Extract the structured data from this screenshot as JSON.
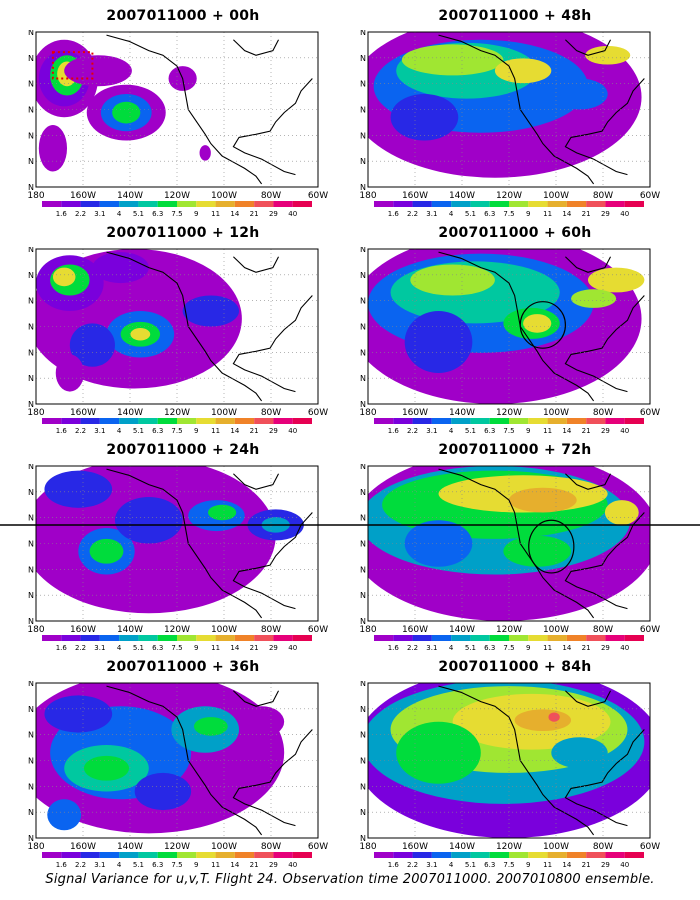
{
  "panels": [
    {
      "id": "p00",
      "title": "2007011000 + 00h"
    },
    {
      "id": "p12",
      "title": "2007011000 + 12h"
    },
    {
      "id": "p24",
      "title": "2007011000 + 24h"
    },
    {
      "id": "p36",
      "title": "2007011000 + 36h"
    },
    {
      "id": "p48",
      "title": "2007011000 + 48h"
    },
    {
      "id": "p60",
      "title": "2007011000 + 60h"
    },
    {
      "id": "p72",
      "title": "2007011000 + 72h"
    },
    {
      "id": "p84",
      "title": "2007011000 + 84h"
    }
  ],
  "axes": {
    "lat_labels": [
      "70N",
      "60N",
      "50N",
      "40N",
      "30N",
      "20N",
      "10N"
    ],
    "lon_labels": [
      "180",
      "160W",
      "140W",
      "120W",
      "100W",
      "80W",
      "60W"
    ]
  },
  "colorbar": {
    "labels": [
      "1.6",
      "2.2",
      "3.1",
      "4",
      "5.1",
      "6.3",
      "7.5",
      "9",
      "11",
      "14",
      "21",
      "29",
      "40"
    ],
    "colors": [
      "#a000c8",
      "#7a00dc",
      "#2828e6",
      "#0a64f0",
      "#00a0c8",
      "#00c8a0",
      "#00dc3c",
      "#a0e632",
      "#e6dc32",
      "#e6af2d",
      "#f08228",
      "#f0505a",
      "#e6007a",
      "#e60052"
    ]
  },
  "footer": {
    "caption": "Signal Variance for u,v,T. Flight 24. Observation time 2007011000. 2007010800 ensemble."
  }
}
